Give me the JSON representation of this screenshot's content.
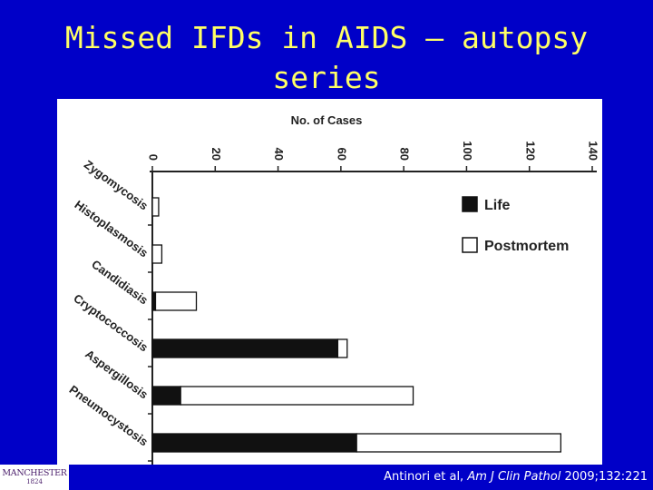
{
  "slide": {
    "title": "Missed IFDs in AIDS – autopsy series",
    "title_color": "#ffff66",
    "background": "#0000c8"
  },
  "chart_data": {
    "type": "bar",
    "orientation": "horizontal",
    "stacked": true,
    "title": "No. of Cases",
    "xlabel": "",
    "ylabel": "",
    "xlim": [
      0,
      140
    ],
    "x_ticks": [
      0,
      20,
      40,
      60,
      80,
      100,
      120,
      140
    ],
    "categories": [
      "Zygomycosis",
      "Histoplasmosis",
      "Candidiasis",
      "Cryptococcosis",
      "Aspergillosis",
      "Pneumocystosis"
    ],
    "series": [
      {
        "name": "Life",
        "color": "#111111",
        "values": [
          0,
          0,
          1,
          59,
          9,
          65
        ]
      },
      {
        "name": "Postmortem",
        "color": "#ffffff",
        "values": [
          2,
          3,
          13,
          3,
          74,
          65
        ]
      }
    ],
    "legend_position": "right",
    "grid": false
  },
  "footer": {
    "logo_text": "MANCHESTER",
    "logo_year": "1824",
    "citation_authors": "Antinori et al,",
    "citation_journal": "Am J Clin Pathol",
    "citation_ref": "2009;132:221"
  }
}
